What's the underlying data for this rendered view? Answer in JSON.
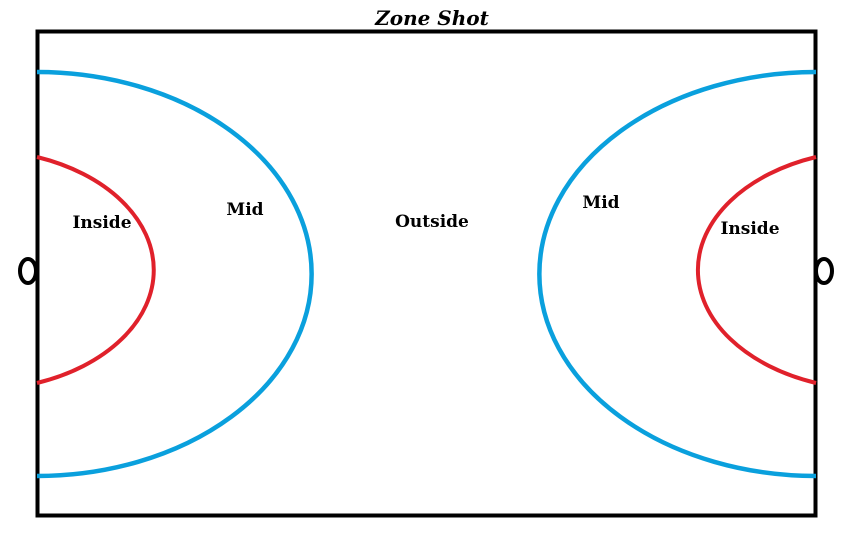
{
  "title": "Zone Shot",
  "zones": {
    "left_inside": "Inside",
    "left_mid": "Mid",
    "outside": "Outside",
    "right_mid": "Mid",
    "right_inside": "Inside"
  },
  "colors": {
    "court_border": "#000000",
    "inside_arc": "#e0212b",
    "mid_arc": "#0aa0dd",
    "goal": "#000000"
  }
}
